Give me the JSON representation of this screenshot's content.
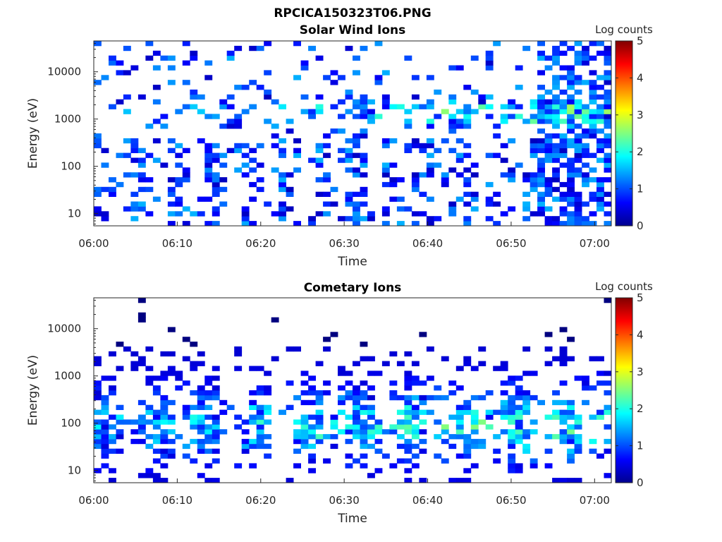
{
  "figure_title": "RPCICA150323T06.PNG",
  "chart_data": [
    {
      "type": "heatmap",
      "title": "Solar Wind Ions",
      "xlabel": "Time",
      "ylabel": "Energy (eV)",
      "yscale": "log",
      "ylim": [
        5.5,
        45000
      ],
      "yticks": [
        10,
        100,
        1000,
        10000
      ],
      "ytick_labels": [
        "10",
        "100",
        "1000",
        "10000"
      ],
      "xlim": [
        "06:00",
        "07:02"
      ],
      "xtick_labels": [
        "06:00",
        "06:10",
        "06:20",
        "06:30",
        "06:40",
        "06:50",
        "07:00"
      ],
      "colorbar": {
        "label": "Log counts",
        "range": [
          0,
          5
        ],
        "ticks": [
          "0",
          "1",
          "2",
          "3",
          "4",
          "5"
        ],
        "colormap": "jet"
      },
      "seed": 11
    },
    {
      "type": "heatmap",
      "title": "Cometary Ions",
      "xlabel": "Time",
      "ylabel": "Energy (eV)",
      "yscale": "log",
      "ylim": [
        5.5,
        45000
      ],
      "yticks": [
        10,
        100,
        1000,
        10000
      ],
      "ytick_labels": [
        "10",
        "100",
        "1000",
        "10000"
      ],
      "xlim": [
        "06:00",
        "07:02"
      ],
      "xtick_labels": [
        "06:00",
        "06:10",
        "06:20",
        "06:30",
        "06:40",
        "06:50",
        "07:00"
      ],
      "colorbar": {
        "label": "Log counts",
        "range": [
          0,
          5
        ],
        "ticks": [
          "0",
          "1",
          "2",
          "3",
          "4",
          "5"
        ],
        "colormap": "jet"
      },
      "seed": 29
    }
  ]
}
